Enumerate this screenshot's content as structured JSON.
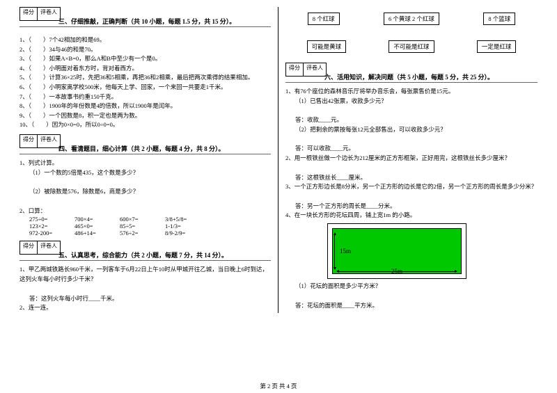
{
  "score_labels": {
    "score": "得分",
    "grader": "评卷人"
  },
  "sec3": {
    "title": "三、仔细推敲，正确判断（共 10 小题，每题 1.5 分，共 15 分）。",
    "items": [
      "（　　）7个42相加的和是69。",
      "（　　）34与46的和是70。",
      "（　　）如果A×B=0，那么A和B中至少有一个是0。",
      "（　　）小明面对着东方时，背对着西方。",
      "（　　）计算36×25时，先把36和5相乘，再把36和2相乘，最后把两次乘得的结果相加。",
      "（　　）小明家离学校500米，他每天上学、回家，一个来回一共要走1千米。",
      "（　　）一本故事书约重150千克。",
      "（　　）1900年的年份数是4的倍数，所以1900年是闰年。",
      "（　　）一个因数是8，积一定也是两为数。",
      "（　　）因为0×0=0，所以0÷0=0。"
    ]
  },
  "sec4": {
    "title": "四、看清题目，细心计算（共 2 小题，每题 4 分，共 8 分）。",
    "q1": "列式计算。",
    "q1a": "（1）一个数的5倍是435，这个数是多少？",
    "q1b": "（2）被除数是576，除数是6，商是多少？",
    "q2": "口算：",
    "calc": [
      [
        "275÷0=",
        "700×4=",
        "600×7=",
        "3/8+5/8="
      ],
      [
        "123×2=",
        "465×0=",
        "85÷5=",
        "1-1/3="
      ],
      [
        "972-200=",
        "486+14=",
        "576÷2=",
        "8/9-2/9="
      ]
    ]
  },
  "sec5": {
    "title": "五、认真思考，综合能力（共 2 小题，每题 7 分，共 14 分）。",
    "q1": "甲乙两城铁路长960千米，一列客车于6月22日上午10时从甲城开往乙城，当日晚上6时到达，这列火车每小时行多少千米？",
    "a1": "答：这列火车每小时行____千米。",
    "q2": "连一连。"
  },
  "match": {
    "row1": [
      "8 个红球",
      "6 个黄球 2 个红球",
      "8 个篮球"
    ],
    "row2": [
      "可能是黄球",
      "不可能是红球",
      "一定是红球"
    ]
  },
  "sec6": {
    "title": "六、活用知识，解决问题（共 5 小题，每题 5 分，共 25 分）。",
    "q1": "有76个座位的森林音乐厅将举办音乐会，每张票售价是15元。",
    "q1a": "（1）已售出42张票，收款多少元？",
    "a1a": "答：收款____元。",
    "q1b": "（2）把剩余的票按每张12元全部售出，可以收款多少元？",
    "a1b": "答：可以收款____元。",
    "q2": "用一根铁丝做一个边长为212厘米的正方形框架，正好用完，这根铁丝长多少厘米？",
    "a2": "答：这根铁丝长____厘米。",
    "q3": "一个正方形边长是8分米，另一个正方形的边长是它的2倍，另一个正方形的周长是多少分米？",
    "a3": "答：另一个正方形的周长是____分米。",
    "q4": "在一块长方形的花坛四周，铺上宽1m 的小路。",
    "dim_v": "15m",
    "dim_h": "25m",
    "q4a": "（1）花坛的面积是多少平方米？",
    "a4a": "答：花坛的面积是____平方米。"
  },
  "footer": "第 2 页  共 4 页",
  "colors": {
    "green": "#00c800",
    "border": "#000000"
  }
}
